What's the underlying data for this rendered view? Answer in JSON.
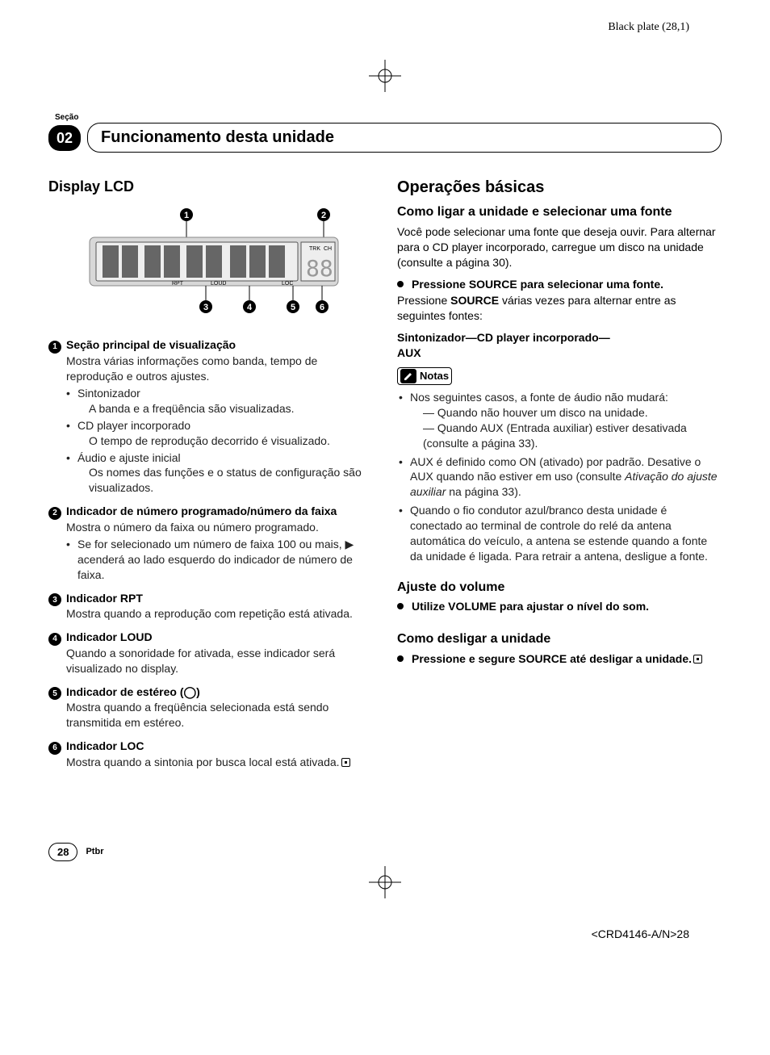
{
  "top_ref": "Black plate (28,1)",
  "secao_label": "Seção",
  "section_number": "02",
  "section_title": "Funcionamento desta unidade",
  "left": {
    "heading": "Display LCD",
    "lcd_labels": {
      "trk": "TRK",
      "ch": "CH",
      "rpt": "RPT",
      "loud": "LOUD",
      "loc": "LOC",
      "eights": "88"
    },
    "callouts": [
      {
        "n": "1",
        "title": "Seção principal de visualização",
        "body": "Mostra várias informações como banda, tempo de reprodução e outros ajustes.",
        "subs": [
          {
            "label": "Sintonizador",
            "desc": "A banda e a freqüência são visualizadas."
          },
          {
            "label": "CD player incorporado",
            "desc": "O tempo de reprodução decorrido é visualizado."
          },
          {
            "label": "Áudio e ajuste inicial",
            "desc": "Os nomes das funções e o status de configuração são visualizados."
          }
        ]
      },
      {
        "n": "2",
        "title": "Indicador de número programado/número da faixa",
        "body": "Mostra o número da faixa ou número programado.",
        "subs": [
          {
            "label": "Se for selecionado um número de faixa 100 ou mais, ▶ acenderá ao lado esquerdo do indicador de número de faixa.",
            "desc": ""
          }
        ]
      },
      {
        "n": "3",
        "title": "Indicador RPT",
        "body": "Mostra quando a reprodução com repetição está ativada."
      },
      {
        "n": "4",
        "title": "Indicador LOUD",
        "body": "Quando a sonoridade for ativada, esse indicador será visualizado no display."
      },
      {
        "n": "5",
        "title": "Indicador de estéreo (◯)",
        "body": "Mostra quando a freqüência selecionada está sendo transmitida em estéreo."
      },
      {
        "n": "6",
        "title": "Indicador LOC",
        "body": "Mostra quando a sintonia por busca local está ativada.",
        "end": true
      }
    ]
  },
  "right": {
    "ops_heading": "Operações básicas",
    "sel_heading": "Como ligar a unidade e selecionar uma fonte",
    "sel_intro": "Você pode selecionar uma fonte que deseja ouvir. Para alternar para o CD player incorporado, carregue um disco na unidade (consulte a página 30).",
    "press_source": "Pressione SOURCE para selecionar uma fonte.",
    "press_source_body_a": "Pressione ",
    "press_source_body_b": "SOURCE",
    "press_source_body_c": " várias vezes para alternar entre as seguintes fontes:",
    "chain_a": "Sintonizador",
    "chain_b": "CD player incorporado",
    "chain_c": "AUX",
    "notes_label": "Notas",
    "notes": [
      {
        "text": "Nos seguintes casos, a fonte de áudio não mudará:",
        "dashes": [
          "Quando não houver um disco na unidade.",
          "Quando AUX (Entrada auxiliar) estiver desativada (consulte a página 33)."
        ]
      },
      {
        "text_a": "AUX é definido como ON (ativado) por padrão. Desative o AUX quando não estiver em uso (consulte ",
        "text_i": "Ativação do ajuste auxiliar",
        "text_b": " na página 33)."
      },
      {
        "text": "Quando o fio condutor azul/branco desta unidade é conectado ao terminal de controle do relé da antena automática do veículo, a antena se estende quando a fonte da unidade é ligada. Para retrair a antena, desligue a fonte."
      }
    ],
    "vol_heading": "Ajuste do volume",
    "vol_line": "Utilize VOLUME para ajustar o nível do som.",
    "off_heading": "Como desligar a unidade",
    "off_line": "Pressione e segure SOURCE até desligar a unidade."
  },
  "footer": {
    "page": "28",
    "lang": "Ptbr",
    "docref": "<CRD4146-A/N>28"
  },
  "colors": {
    "text": "#000000",
    "bg": "#ffffff",
    "lcd_bg": "#d8d8d8",
    "lcd_border": "#888"
  }
}
